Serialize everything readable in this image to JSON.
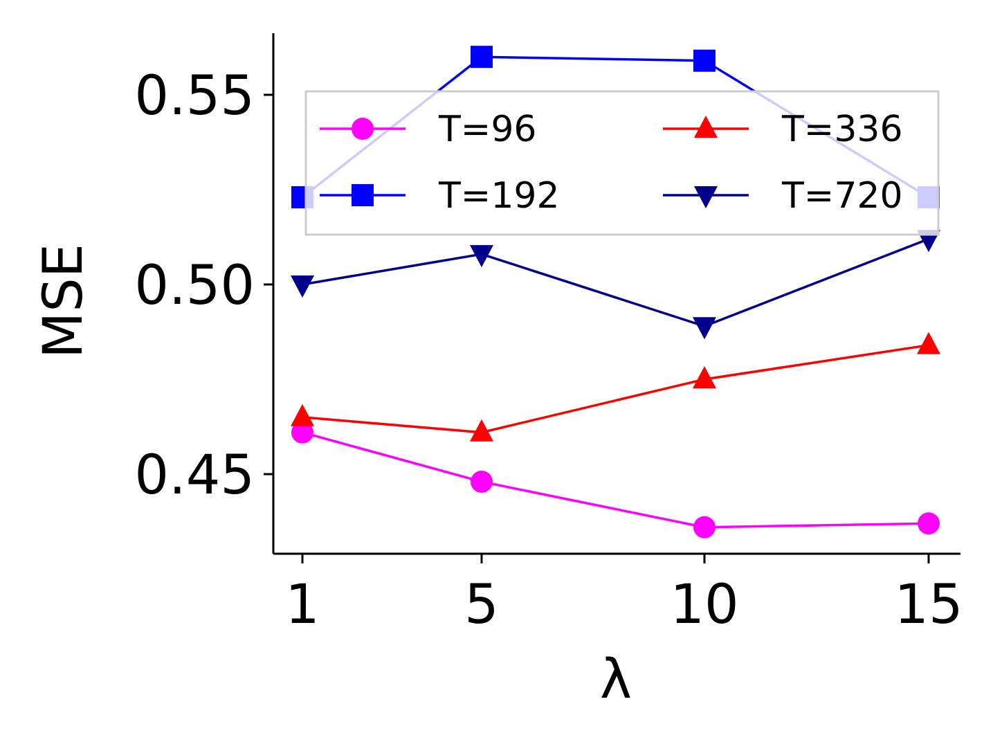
{
  "chart_data": {
    "type": "line",
    "title": "",
    "xlabel": "λ",
    "ylabel": "MSE",
    "x": [
      1,
      5,
      10,
      15
    ],
    "x_ticks": [
      "1",
      "5",
      "10",
      "15"
    ],
    "y_ticks": [
      "0.45",
      "0.50",
      "0.55"
    ],
    "y_tick_values": [
      0.45,
      0.5,
      0.55
    ],
    "ylim": [
      0.43,
      0.567
    ],
    "grid": false,
    "legend_placement": "top",
    "series": [
      {
        "name": "T=96",
        "color": "#ff00ff",
        "marker": "circle",
        "values": [
          0.461,
          0.448,
          0.436,
          0.437
        ]
      },
      {
        "name": "T=192",
        "color": "#0000ff",
        "marker": "square",
        "values": [
          0.523,
          0.56,
          0.559,
          0.523
        ]
      },
      {
        "name": "T=336",
        "color": "#ff0000",
        "marker": "triangle-up",
        "values": [
          0.465,
          0.461,
          0.475,
          0.484
        ]
      },
      {
        "name": "T=720",
        "color": "#00008b",
        "marker": "triangle-down",
        "values": [
          0.5,
          0.508,
          0.489,
          0.512
        ]
      }
    ]
  }
}
